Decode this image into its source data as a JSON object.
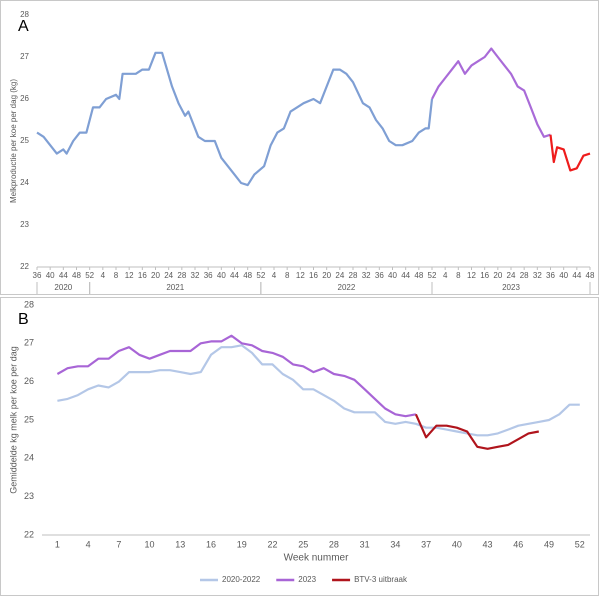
{
  "chart_data": [
    {
      "type": "line",
      "panel_label": "A",
      "ylabel": "Melkproductie per koe per dag (kg)",
      "xlim": [
        0,
        168
      ],
      "ylim": [
        22,
        28
      ],
      "yticks": [
        22,
        23,
        24,
        25,
        26,
        27,
        28
      ],
      "grid": false,
      "legend": false,
      "xticks": [
        {
          "value": 0,
          "label": "36"
        },
        {
          "value": 4,
          "label": "40"
        },
        {
          "value": 8,
          "label": "44"
        },
        {
          "value": 12,
          "label": "48"
        },
        {
          "value": 16,
          "label": "52"
        },
        {
          "value": 20,
          "label": "4"
        },
        {
          "value": 24,
          "label": "8"
        },
        {
          "value": 28,
          "label": "12"
        },
        {
          "value": 32,
          "label": "16"
        },
        {
          "value": 36,
          "label": "20"
        },
        {
          "value": 40,
          "label": "24"
        },
        {
          "value": 44,
          "label": "28"
        },
        {
          "value": 48,
          "label": "32"
        },
        {
          "value": 52,
          "label": "36"
        },
        {
          "value": 56,
          "label": "40"
        },
        {
          "value": 60,
          "label": "44"
        },
        {
          "value": 64,
          "label": "48"
        },
        {
          "value": 68,
          "label": "52"
        },
        {
          "value": 72,
          "label": "4"
        },
        {
          "value": 76,
          "label": "8"
        },
        {
          "value": 80,
          "label": "12"
        },
        {
          "value": 84,
          "label": "16"
        },
        {
          "value": 88,
          "label": "20"
        },
        {
          "value": 92,
          "label": "24"
        },
        {
          "value": 96,
          "label": "28"
        },
        {
          "value": 100,
          "label": "32"
        },
        {
          "value": 104,
          "label": "36"
        },
        {
          "value": 108,
          "label": "40"
        },
        {
          "value": 112,
          "label": "44"
        },
        {
          "value": 116,
          "label": "48"
        },
        {
          "value": 120,
          "label": "52"
        },
        {
          "value": 124,
          "label": "4"
        },
        {
          "value": 128,
          "label": "8"
        },
        {
          "value": 132,
          "label": "12"
        },
        {
          "value": 136,
          "label": "16"
        },
        {
          "value": 140,
          "label": "20"
        },
        {
          "value": 144,
          "label": "24"
        },
        {
          "value": 148,
          "label": "28"
        },
        {
          "value": 152,
          "label": "32"
        },
        {
          "value": 156,
          "label": "36"
        },
        {
          "value": 160,
          "label": "40"
        },
        {
          "value": 164,
          "label": "44"
        },
        {
          "value": 168,
          "label": "48"
        }
      ],
      "years": [
        {
          "label": "2020",
          "range": [
            0,
            16
          ]
        },
        {
          "label": "2021",
          "range": [
            16,
            68
          ]
        },
        {
          "label": "2022",
          "range": [
            68,
            120
          ]
        },
        {
          "label": "2023",
          "range": [
            120,
            168
          ]
        }
      ],
      "series": [
        {
          "color": "#7f9fd4",
          "x": [
            0,
            2,
            4,
            6,
            8,
            9,
            11,
            13,
            15,
            17,
            19,
            21,
            24,
            25,
            26,
            28,
            30,
            32,
            34,
            36,
            38,
            41,
            43,
            45,
            46,
            49,
            51,
            54,
            56,
            58,
            60,
            62,
            64,
            66,
            69,
            71,
            73,
            75,
            77,
            79,
            81,
            84,
            86,
            88,
            90,
            92,
            94,
            96,
            99,
            101,
            103,
            105,
            107,
            109,
            111,
            114,
            116,
            118,
            119,
            120
          ],
          "values": [
            25.2,
            25.1,
            24.9,
            24.7,
            24.8,
            24.7,
            25.0,
            25.2,
            25.2,
            25.8,
            25.8,
            26.0,
            26.1,
            26.0,
            26.6,
            26.6,
            26.6,
            26.7,
            26.7,
            27.1,
            27.1,
            26.3,
            25.9,
            25.6,
            25.7,
            25.1,
            25.0,
            25.0,
            24.6,
            24.4,
            24.2,
            24.0,
            23.95,
            24.2,
            24.4,
            24.9,
            25.2,
            25.3,
            25.7,
            25.8,
            25.9,
            26.0,
            25.9,
            26.3,
            26.7,
            26.7,
            26.6,
            26.4,
            25.9,
            25.8,
            25.5,
            25.3,
            25.0,
            24.9,
            24.9,
            25.0,
            25.2,
            25.3,
            25.3,
            26.0
          ]
        },
        {
          "color": "#a96bd8",
          "x": [
            120,
            122,
            124,
            126,
            128,
            130,
            132,
            134,
            136,
            138,
            140,
            142,
            144,
            146,
            148,
            150,
            152,
            154,
            156
          ],
          "values": [
            26.0,
            26.3,
            26.5,
            26.7,
            26.9,
            26.6,
            26.8,
            26.9,
            27.0,
            27.2,
            27.0,
            26.8,
            26.6,
            26.3,
            26.2,
            25.8,
            25.4,
            25.1,
            25.15
          ]
        },
        {
          "color": "#ee1c1c",
          "x": [
            156,
            157,
            158,
            160,
            162,
            164,
            166,
            168
          ],
          "values": [
            25.15,
            24.5,
            24.85,
            24.8,
            24.3,
            24.35,
            24.65,
            24.7
          ]
        }
      ]
    },
    {
      "type": "line",
      "panel_label": "B",
      "ylabel": "Gemiddelde kg melk per koe per dag",
      "xlabel": "Week nummer",
      "xlim": [
        -0.5,
        53
      ],
      "ylim": [
        22,
        28
      ],
      "yticks": [
        22,
        23,
        24,
        25,
        26,
        27,
        28
      ],
      "xticks": [
        1,
        4,
        7,
        10,
        13,
        16,
        19,
        22,
        25,
        28,
        31,
        34,
        37,
        40,
        43,
        46,
        49,
        52
      ],
      "grid": false,
      "legend": true,
      "series": [
        {
          "name": "2020-2022",
          "color": "#b4c7e7",
          "x": [
            1,
            2,
            3,
            4,
            5,
            6,
            7,
            8,
            9,
            10,
            11,
            12,
            13,
            14,
            15,
            16,
            17,
            18,
            19,
            20,
            21,
            22,
            23,
            24,
            25,
            26,
            27,
            28,
            29,
            30,
            31,
            32,
            33,
            34,
            35,
            36,
            37,
            38,
            39,
            40,
            41,
            42,
            43,
            44,
            45,
            46,
            47,
            48,
            49,
            50,
            51,
            52
          ],
          "values": [
            25.5,
            25.55,
            25.65,
            25.8,
            25.9,
            25.85,
            26.0,
            26.25,
            26.25,
            26.25,
            26.3,
            26.3,
            26.25,
            26.2,
            26.25,
            26.7,
            26.9,
            26.9,
            26.95,
            26.75,
            26.45,
            26.45,
            26.2,
            26.05,
            25.8,
            25.8,
            25.65,
            25.5,
            25.3,
            25.2,
            25.2,
            25.2,
            24.95,
            24.9,
            24.95,
            24.9,
            24.8,
            24.8,
            24.75,
            24.7,
            24.65,
            24.6,
            24.6,
            24.65,
            24.75,
            24.85,
            24.9,
            24.95,
            25.0,
            25.15,
            25.4,
            25.4
          ]
        },
        {
          "name": "2023",
          "color": "#a865d6",
          "x": [
            1,
            2,
            3,
            4,
            5,
            6,
            7,
            8,
            9,
            10,
            11,
            12,
            13,
            14,
            15,
            16,
            17,
            18,
            19,
            20,
            21,
            22,
            23,
            24,
            25,
            26,
            27,
            28,
            29,
            30,
            31,
            32,
            33,
            34,
            35,
            36
          ],
          "values": [
            26.2,
            26.35,
            26.4,
            26.4,
            26.6,
            26.6,
            26.8,
            26.9,
            26.7,
            26.6,
            26.7,
            26.8,
            26.8,
            26.8,
            27.0,
            27.05,
            27.05,
            27.2,
            27.0,
            26.95,
            26.8,
            26.75,
            26.65,
            26.45,
            26.4,
            26.25,
            26.35,
            26.2,
            26.15,
            26.05,
            25.8,
            25.55,
            25.3,
            25.15,
            25.1,
            25.15
          ]
        },
        {
          "name": "BTV-3 uitbraak",
          "color": "#b0141c",
          "x": [
            36,
            37,
            38,
            39,
            40,
            41,
            42,
            43,
            44,
            45,
            46,
            47,
            48
          ],
          "values": [
            25.15,
            24.55,
            24.85,
            24.85,
            24.8,
            24.7,
            24.3,
            24.25,
            24.3,
            24.35,
            24.5,
            24.65,
            24.7
          ]
        }
      ]
    }
  ]
}
